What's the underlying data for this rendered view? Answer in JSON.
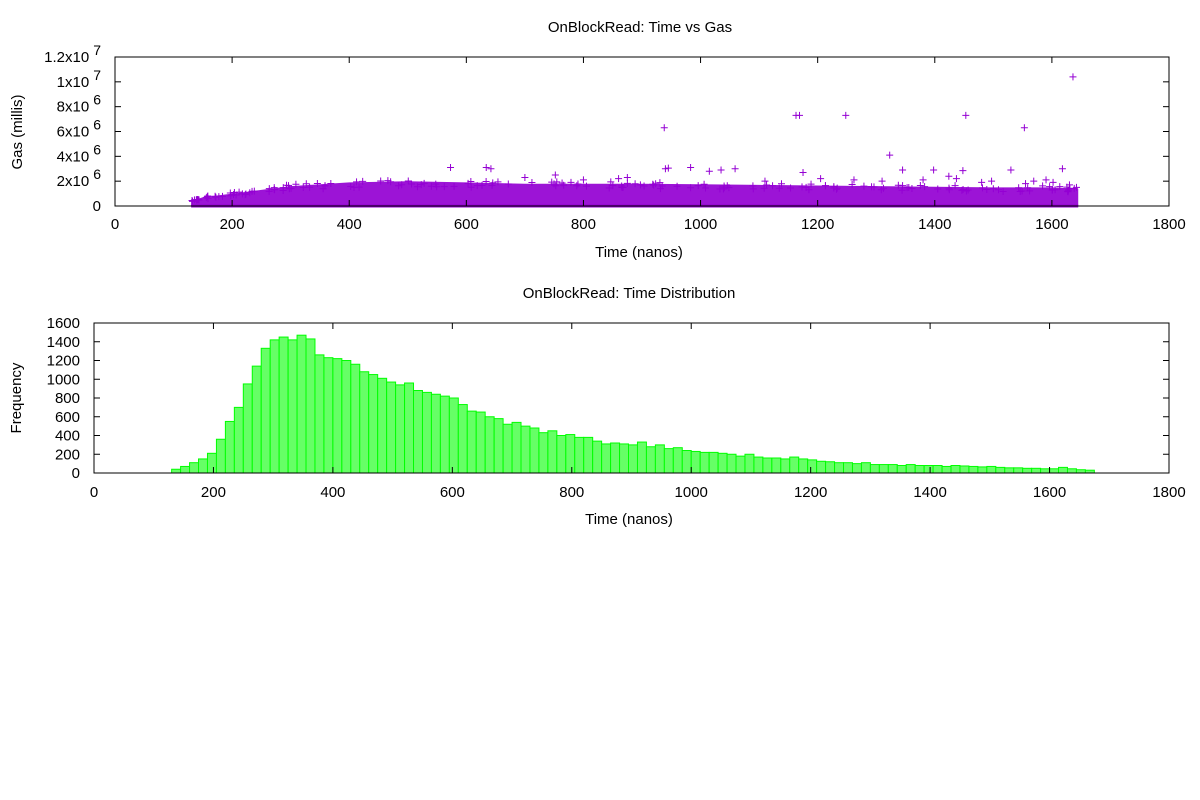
{
  "chart_data": [
    {
      "type": "scatter",
      "title": "OnBlockRead: Time vs Gas",
      "xlabel": "Time (nanos)",
      "ylabel": "Gas (millis)",
      "xlim": [
        0,
        1800
      ],
      "ylim": [
        0,
        12000000
      ],
      "x_ticks": [
        "0",
        "200",
        "400",
        "600",
        "800",
        "1000",
        "1200",
        "1400",
        "1600",
        "1800"
      ],
      "x_tick_values": [
        0,
        200,
        400,
        600,
        800,
        1000,
        1200,
        1400,
        1600,
        1800
      ],
      "y_ticks": [
        {
          "value": 0,
          "base": "0",
          "exp": ""
        },
        {
          "value": 2000000,
          "base": "2x10",
          "exp": "6"
        },
        {
          "value": 4000000,
          "base": "4x10",
          "exp": "6"
        },
        {
          "value": 6000000,
          "base": "6x10",
          "exp": "6"
        },
        {
          "value": 8000000,
          "base": "8x10",
          "exp": "6"
        },
        {
          "value": 10000000,
          "base": "1x10",
          "exp": "7"
        },
        {
          "value": 12000000,
          "base": "1.2x10",
          "exp": "7"
        }
      ],
      "grid": false,
      "legend": "none",
      "marker": "+",
      "color": "#9400d3",
      "band_upper_envelope": [
        [
          130,
          400000
        ],
        [
          150,
          700000
        ],
        [
          200,
          1000000
        ],
        [
          250,
          1300000
        ],
        [
          300,
          1600000
        ],
        [
          400,
          1900000
        ],
        [
          500,
          2000000
        ],
        [
          600,
          1900000
        ],
        [
          700,
          1800000
        ],
        [
          800,
          1800000
        ],
        [
          900,
          1800000
        ],
        [
          1000,
          1750000
        ],
        [
          1100,
          1700000
        ],
        [
          1200,
          1650000
        ],
        [
          1300,
          1600000
        ],
        [
          1400,
          1550000
        ],
        [
          1500,
          1500000
        ],
        [
          1600,
          1500000
        ],
        [
          1645,
          1400000
        ]
      ],
      "points": [
        [
          1636,
          10400000
        ],
        [
          1163,
          7300000
        ],
        [
          1169,
          7300000
        ],
        [
          1248,
          7300000
        ],
        [
          1453,
          7300000
        ],
        [
          938,
          6300000
        ],
        [
          1553,
          6300000
        ],
        [
          1323,
          4100000
        ],
        [
          573,
          3100000
        ],
        [
          634,
          3100000
        ],
        [
          642,
          3000000
        ],
        [
          940,
          3000000
        ],
        [
          945,
          3050000
        ],
        [
          983,
          3100000
        ],
        [
          1059,
          3000000
        ],
        [
          1035,
          2900000
        ],
        [
          1015,
          2800000
        ],
        [
          1175,
          2700000
        ],
        [
          1345,
          2900000
        ],
        [
          1398,
          2900000
        ],
        [
          1448,
          2850000
        ],
        [
          1530,
          2900000
        ],
        [
          1618,
          3000000
        ],
        [
          1424,
          2400000
        ],
        [
          1437,
          2200000
        ],
        [
          752,
          2500000
        ],
        [
          875,
          2300000
        ],
        [
          1205,
          2200000
        ],
        [
          1262,
          2100000
        ],
        [
          1497,
          2000000
        ],
        [
          1569,
          2000000
        ],
        [
          1590,
          2100000
        ],
        [
          1602,
          1900000
        ],
        [
          1630,
          1700000
        ],
        [
          1642,
          1500000
        ],
        [
          1310,
          2000000
        ],
        [
          1380,
          2100000
        ],
        [
          1480,
          1900000
        ],
        [
          1555,
          1800000
        ],
        [
          1110,
          2000000
        ],
        [
          860,
          2200000
        ],
        [
          700,
          2300000
        ],
        [
          800,
          2100000
        ]
      ]
    },
    {
      "type": "bar",
      "title": "OnBlockRead: Time Distribution",
      "xlabel": "Time (nanos)",
      "ylabel": "Frequency",
      "xlim": [
        0,
        1800
      ],
      "ylim": [
        0,
        1600
      ],
      "x_ticks": [
        "0",
        "200",
        "400",
        "600",
        "800",
        "1000",
        "1200",
        "1400",
        "1600",
        "1800"
      ],
      "x_tick_values": [
        0,
        200,
        400,
        600,
        800,
        1000,
        1200,
        1400,
        1600,
        1800
      ],
      "y_ticks": [
        "0",
        "200",
        "400",
        "600",
        "800",
        "1000",
        "1200",
        "1400",
        "1600"
      ],
      "y_tick_values": [
        0,
        200,
        400,
        600,
        800,
        1000,
        1200,
        1400,
        1600
      ],
      "grid": false,
      "legend": "none",
      "color": "#00ff00",
      "bin_start": 130,
      "bin_width": 15,
      "values": [
        40,
        70,
        110,
        150,
        210,
        360,
        550,
        700,
        950,
        1140,
        1330,
        1420,
        1450,
        1420,
        1470,
        1430,
        1260,
        1230,
        1220,
        1200,
        1160,
        1080,
        1050,
        1010,
        970,
        940,
        960,
        880,
        860,
        840,
        820,
        800,
        730,
        660,
        650,
        600,
        580,
        520,
        540,
        500,
        480,
        430,
        450,
        400,
        410,
        380,
        380,
        340,
        310,
        320,
        310,
        300,
        330,
        280,
        300,
        260,
        270,
        240,
        230,
        220,
        220,
        210,
        200,
        180,
        200,
        170,
        160,
        160,
        150,
        170,
        150,
        140,
        125,
        120,
        110,
        110,
        100,
        110,
        90,
        90,
        90,
        80,
        90,
        80,
        80,
        80,
        70,
        80,
        75,
        70,
        65,
        70,
        60,
        55,
        55,
        50,
        50,
        45,
        45,
        60,
        45,
        35,
        30
      ]
    }
  ]
}
